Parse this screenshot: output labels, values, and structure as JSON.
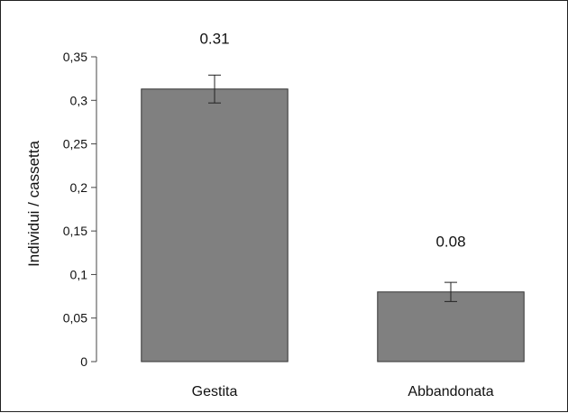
{
  "chart_data": {
    "type": "bar",
    "title": "",
    "xlabel": "",
    "ylabel": "Individui / cassetta",
    "categories": [
      "Gestita",
      "Abbandonata"
    ],
    "values": [
      0.313,
      0.08
    ],
    "data_labels": [
      "0.31",
      "0.08"
    ],
    "error": [
      0.016,
      0.011
    ],
    "ylim": [
      0,
      0.35
    ],
    "yticks": [
      0,
      0.05,
      0.1,
      0.15,
      0.2,
      0.25,
      0.3,
      0.35
    ],
    "ytick_labels": [
      "0",
      "0,05",
      "0,1",
      "0,15",
      "0,2",
      "0,25",
      "0,3",
      "0,35"
    ],
    "bar_color": "#808080",
    "bar_edge_color": "#333333",
    "grid": false,
    "legend": "none"
  }
}
